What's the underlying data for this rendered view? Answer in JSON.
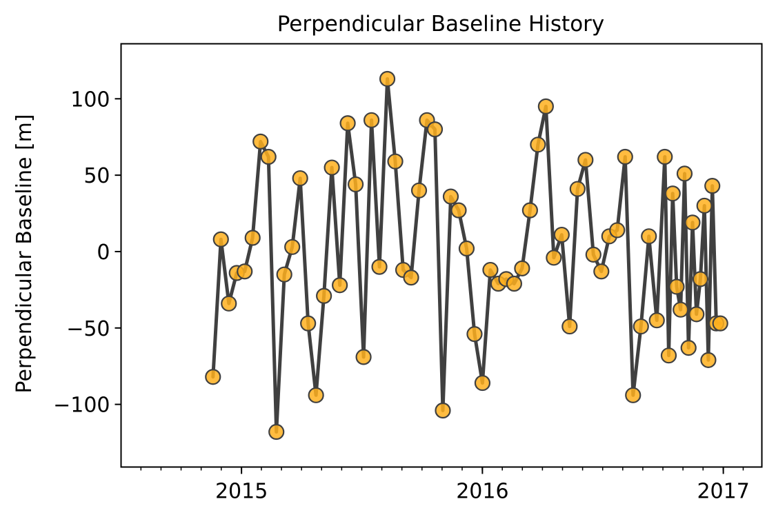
{
  "chart_data": {
    "type": "line",
    "title": "Perpendicular Baseline History",
    "xlabel": "",
    "ylabel": "Perpendicular Baseline [m]",
    "xlim": [
      2014.5,
      2017.16
    ],
    "ylim": [
      -141,
      136
    ],
    "x_ticks": [
      2015,
      2016,
      2017
    ],
    "x_tick_labels": [
      "2015",
      "2016",
      "2017"
    ],
    "y_ticks": [
      -100,
      -50,
      0,
      50,
      100
    ],
    "y_tick_labels": [
      "−100",
      "−50",
      "0",
      "50",
      "100"
    ],
    "x_minor_step": 0.0833333,
    "grid": false,
    "legend": null,
    "line_color": "#404040",
    "marker_fill": "#ffb01e",
    "marker_edge": "#404040",
    "series": [
      {
        "name": "Perpendicular Baseline",
        "x": [
          2014.8816,
          2014.9145,
          2014.9474,
          2014.9803,
          2015.0132,
          2015.0461,
          2015.079,
          2015.1119,
          2015.1448,
          2015.1777,
          2015.2106,
          2015.2435,
          2015.2764,
          2015.3093,
          2015.3422,
          2015.3751,
          2015.408,
          2015.4409,
          2015.4738,
          2015.5067,
          2015.5396,
          2015.5725,
          2015.6054,
          2015.6383,
          2015.6712,
          2015.7041,
          2015.737,
          2015.7699,
          2015.8028,
          2015.8357,
          2015.8686,
          2015.9015,
          2015.9344,
          2015.9673,
          2016.0002,
          2016.0331,
          2016.066,
          2016.0989,
          2016.1318,
          2016.1647,
          2016.1976,
          2016.2305,
          2016.2634,
          2016.2963,
          2016.3292,
          2016.3621,
          2016.395,
          2016.4279,
          2016.4608,
          2016.4937,
          2016.5266,
          2016.5595,
          2016.5924,
          2016.6253,
          2016.6582,
          2016.6911,
          2016.724,
          2016.757,
          2016.7734,
          2016.7899,
          2016.8063,
          2016.8228,
          2016.8392,
          2016.8557,
          2016.8721,
          2016.8886,
          2016.905,
          2016.9215,
          2016.9379,
          2016.9544,
          2016.9708,
          2016.9873
        ],
        "values": [
          -82,
          8,
          -34,
          -14,
          -13,
          9,
          72,
          62,
          -118,
          -15,
          3,
          48,
          -47,
          -94,
          -29,
          55,
          -22,
          84,
          44,
          -69,
          86,
          -10,
          113,
          59,
          -12,
          -17,
          40,
          86,
          80,
          -104,
          36,
          27,
          2,
          -54,
          -86,
          -12,
          -21,
          -18,
          -21,
          -11,
          27,
          70,
          95,
          -4,
          11,
          -49,
          41,
          60,
          -2,
          -13,
          10,
          14,
          62,
          -94,
          -49,
          10,
          -45,
          62,
          -68,
          38,
          -23,
          -38,
          51,
          -63,
          19,
          -41,
          -18,
          30,
          -71,
          43,
          -47,
          -47
        ]
      }
    ]
  }
}
